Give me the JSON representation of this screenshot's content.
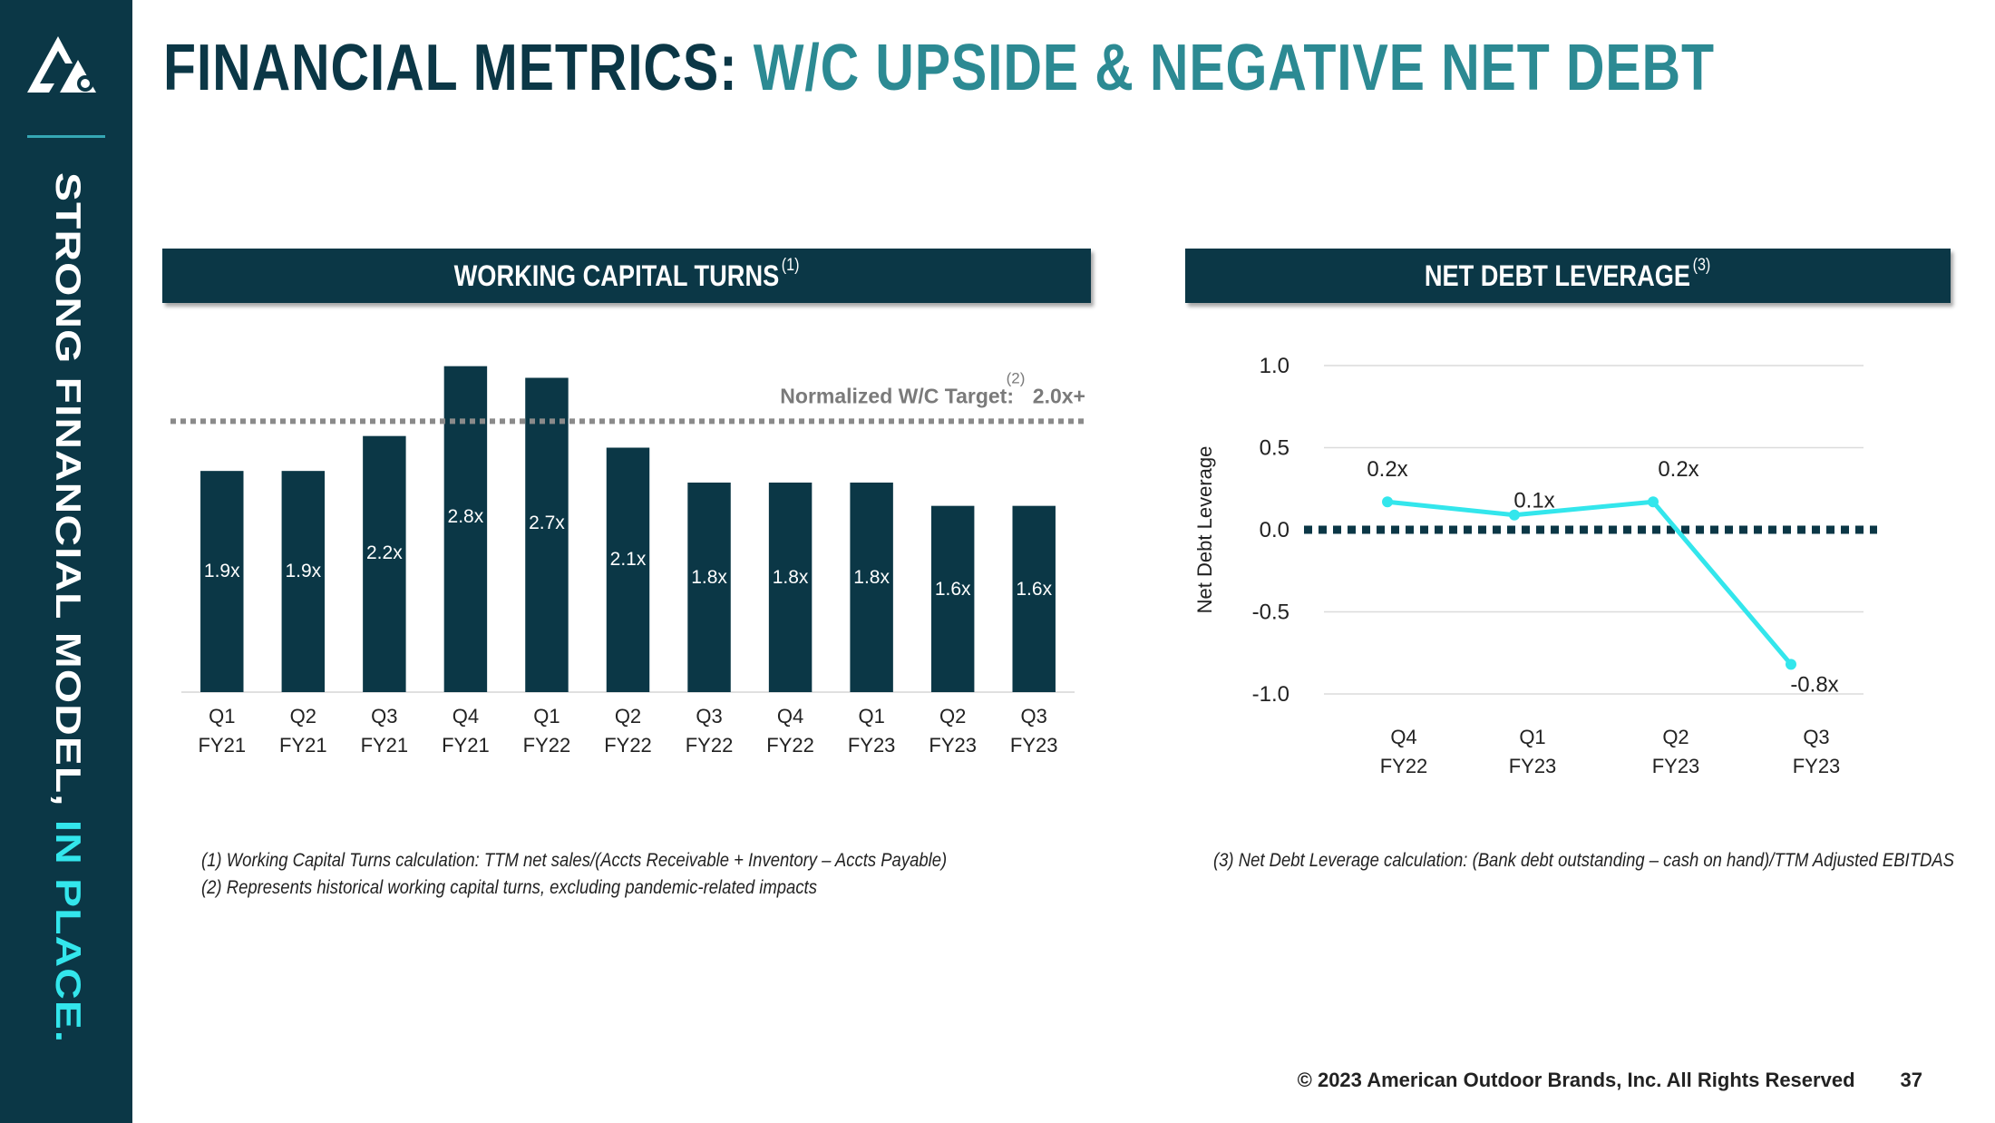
{
  "sidebar": {
    "text_main": "STRONG FINANCIAL MODEL,",
    "text_accent": "IN PLACE."
  },
  "title": {
    "main": "FINANCIAL METRICS:",
    "accent": "W/C UPSIDE & NEGATIVE NET DEBT"
  },
  "colors": {
    "navy": "#0b3746",
    "teal": "#2c8a93",
    "cyan": "#33e6ec",
    "gray": "#7a7a7a"
  },
  "panels": {
    "wc": {
      "title": "WORKING CAPITAL TURNS",
      "note": "(1)"
    },
    "nd": {
      "title": "NET DEBT LEVERAGE",
      "note": "(3)"
    }
  },
  "chart_data": [
    {
      "type": "bar",
      "categories": [
        [
          "Q1",
          "FY21"
        ],
        [
          "Q2",
          "FY21"
        ],
        [
          "Q3",
          "FY21"
        ],
        [
          "Q4",
          "FY21"
        ],
        [
          "Q1",
          "FY22"
        ],
        [
          "Q2",
          "FY22"
        ],
        [
          "Q3",
          "FY22"
        ],
        [
          "Q4",
          "FY22"
        ],
        [
          "Q1",
          "FY23"
        ],
        [
          "Q2",
          "FY23"
        ],
        [
          "Q3",
          "FY23"
        ]
      ],
      "values": [
        1.9,
        1.9,
        2.2,
        2.8,
        2.7,
        2.1,
        1.8,
        1.8,
        1.8,
        1.6,
        1.6
      ],
      "labels": [
        "1.9x",
        "1.9x",
        "2.2x",
        "2.8x",
        "2.7x",
        "2.1x",
        "1.8x",
        "1.8x",
        "1.8x",
        "1.6x",
        "1.6x"
      ],
      "ylim": [
        0,
        3
      ],
      "target": {
        "value": 2.0,
        "label": "Normalized W/C Target:",
        "note": "(2)",
        "value_label": "2.0x+"
      },
      "bar_color": "#0b3746"
    },
    {
      "type": "line",
      "categories": [
        [
          "Q4",
          "FY22"
        ],
        [
          "Q1",
          "FY23"
        ],
        [
          "Q2",
          "FY23"
        ],
        [
          "Q3",
          "FY23"
        ]
      ],
      "values": [
        0.17,
        0.09,
        0.17,
        -0.82
      ],
      "labels": [
        "0.2x",
        "0.1x",
        "0.2x",
        "-0.8x"
      ],
      "ylabel": "Net Debt Leverage",
      "ylim": [
        -1.0,
        1.0
      ],
      "yticks": [
        "1.0",
        "0.5",
        "0.0",
        "-0.5",
        "-1.0"
      ],
      "ytick_values": [
        1.0,
        0.5,
        0.0,
        -0.5,
        -1.0
      ],
      "zero_line": true,
      "grid": true,
      "line_color": "#33e6ec"
    }
  ],
  "footnotes": {
    "wc": [
      "(1) Working Capital Turns calculation:  TTM net sales/(Accts Receivable + Inventory – Accts Payable)",
      "(2) Represents historical working capital turns, excluding pandemic-related impacts"
    ],
    "nd": [
      "(3) Net Debt Leverage calculation:  (Bank debt outstanding – cash on hand)/TTM Adjusted EBITDAS"
    ]
  },
  "footer": {
    "copyright": "© 2023 American Outdoor Brands, Inc. All Rights Reserved",
    "page": "37"
  }
}
